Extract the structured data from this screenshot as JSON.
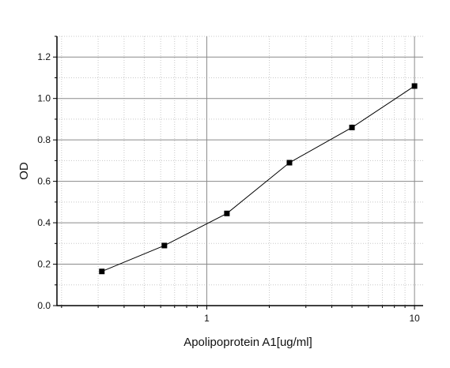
{
  "chart_data": {
    "type": "line",
    "title": "",
    "xlabel": "Apolipoprotein A1[ug/ml]",
    "ylabel": "OD",
    "x_scale": "log",
    "xlim": [
      0.19,
      11
    ],
    "ylim": [
      0.0,
      1.3
    ],
    "x_ticks": [
      1,
      10
    ],
    "x_tick_labels": [
      "1",
      "10"
    ],
    "y_ticks": [
      0.0,
      0.2,
      0.4,
      0.6,
      0.8,
      1.0,
      1.2
    ],
    "y_tick_labels": [
      "0.0",
      "0.2",
      "0.4",
      "0.6",
      "0.8",
      "1.0",
      "1.2"
    ],
    "grid": true,
    "series": [
      {
        "x": [
          0.3125,
          0.625,
          1.25,
          2.5,
          5,
          10
        ],
        "y": [
          0.165,
          0.29,
          0.445,
          0.69,
          0.86,
          1.06
        ],
        "marker": "square",
        "color": "#000000"
      }
    ]
  }
}
